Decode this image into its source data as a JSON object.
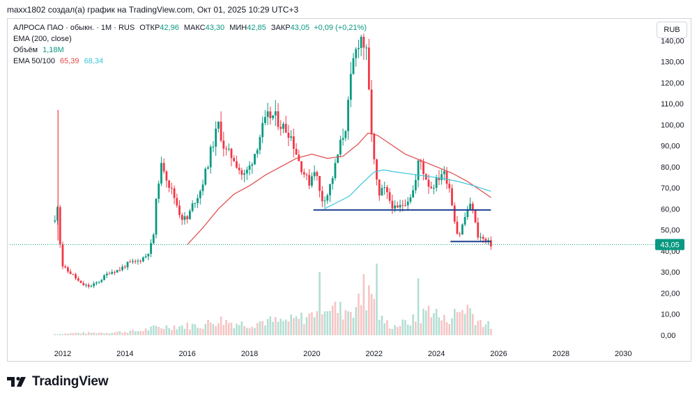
{
  "header": {
    "attribution": "maxx1802 создал(а) график на TradingView.com, Окт 01, 2025 10:29 UTC+3"
  },
  "legend": {
    "symbol": "АЛРОСА ПАО · обыкн. · 1М · RUS",
    "open_label": "ОТКР",
    "open_value": "42,96",
    "high_label": "МАКС",
    "high_value": "43,30",
    "low_label": "МИН",
    "low_value": "42,85",
    "close_label": "ЗАКР",
    "close_value": "43,05",
    "change_value": "+0,09 (+0,21%)",
    "ema200_label": "EMA (200, close)",
    "volume_label": "Объём",
    "volume_value": "1,18M",
    "ema_50_100_label": "EMA 50/100",
    "ema50_value": "65,39",
    "ema100_value": "68,34"
  },
  "currency_button": "RUB",
  "price_badge": "43,05",
  "brand": {
    "name": "TradingView"
  },
  "colors": {
    "up": "#089981",
    "down": "#f23645",
    "ema50": "#e04848",
    "ema100": "#3ac6dc",
    "level": "#1e3f8f",
    "volume_up": "#b2dfd4",
    "volume_down": "#f7c4c4",
    "price_line": "#089981"
  },
  "chart_data": {
    "type": "candlestick",
    "title": "АЛРОСА ПАО · обыкн. · 1М · RUS",
    "xlabel": "",
    "ylabel": "",
    "x_ticks": [
      "2012",
      "2014",
      "2016",
      "2018",
      "2020",
      "2022",
      "2024",
      "2026",
      "2028",
      "2030"
    ],
    "y_ticks": [
      "0,00",
      "10,00",
      "20,00",
      "30,00",
      "40,00",
      "50,00",
      "60,00",
      "70,00",
      "80,00",
      "90,00",
      "100,00",
      "110,00",
      "120,00",
      "130,00",
      "140,00"
    ],
    "ylim": [
      -4,
      150
    ],
    "xlim": [
      2010.3,
      2030.8
    ],
    "last_price": 43.05,
    "horizontal_levels": [
      {
        "price": 59.5,
        "from": 2020.05,
        "to": 2025.75
      },
      {
        "price": 44.5,
        "from": 2024.45,
        "to": 2025.75
      }
    ],
    "price_path": [
      [
        2011.75,
        54
      ],
      [
        2011.85,
        64
      ],
      [
        2011.95,
        34
      ],
      [
        2012.1,
        31
      ],
      [
        2012.3,
        29
      ],
      [
        2012.6,
        24
      ],
      [
        2012.9,
        23
      ],
      [
        2013.2,
        26
      ],
      [
        2013.5,
        30
      ],
      [
        2013.8,
        31
      ],
      [
        2014.1,
        34
      ],
      [
        2014.4,
        35
      ],
      [
        2014.7,
        38
      ],
      [
        2014.9,
        45
      ],
      [
        2015.05,
        72
      ],
      [
        2015.2,
        82
      ],
      [
        2015.4,
        72
      ],
      [
        2015.6,
        65
      ],
      [
        2015.8,
        56
      ],
      [
        2016.0,
        55
      ],
      [
        2016.2,
        63
      ],
      [
        2016.4,
        68
      ],
      [
        2016.6,
        78
      ],
      [
        2016.8,
        90
      ],
      [
        2017.0,
        100
      ],
      [
        2017.2,
        88
      ],
      [
        2017.5,
        84
      ],
      [
        2017.8,
        75
      ],
      [
        2018.0,
        80
      ],
      [
        2018.2,
        88
      ],
      [
        2018.4,
        98
      ],
      [
        2018.6,
        104
      ],
      [
        2018.8,
        104
      ],
      [
        2019.0,
        100
      ],
      [
        2019.3,
        96
      ],
      [
        2019.6,
        82
      ],
      [
        2019.9,
        72
      ],
      [
        2020.1,
        80
      ],
      [
        2020.3,
        64
      ],
      [
        2020.5,
        67
      ],
      [
        2020.7,
        77
      ],
      [
        2020.9,
        90
      ],
      [
        2021.1,
        100
      ],
      [
        2021.3,
        128
      ],
      [
        2021.5,
        140
      ],
      [
        2021.6,
        142
      ],
      [
        2021.75,
        133
      ],
      [
        2021.9,
        100
      ],
      [
        2022.0,
        82
      ],
      [
        2022.15,
        65
      ],
      [
        2022.3,
        70
      ],
      [
        2022.5,
        64
      ],
      [
        2022.7,
        59
      ],
      [
        2022.9,
        62
      ],
      [
        2023.1,
        65
      ],
      [
        2023.3,
        70
      ],
      [
        2023.45,
        85
      ],
      [
        2023.6,
        77
      ],
      [
        2023.8,
        70
      ],
      [
        2024.0,
        73
      ],
      [
        2024.2,
        78
      ],
      [
        2024.4,
        72
      ],
      [
        2024.55,
        58
      ],
      [
        2024.7,
        46
      ],
      [
        2024.85,
        53
      ],
      [
        2025.0,
        60
      ],
      [
        2025.15,
        62
      ],
      [
        2025.3,
        48
      ],
      [
        2025.45,
        46
      ],
      [
        2025.6,
        44.5
      ],
      [
        2025.75,
        43.05
      ]
    ],
    "ema50_path": [
      [
        2016.0,
        43
      ],
      [
        2016.5,
        51
      ],
      [
        2017.0,
        60
      ],
      [
        2017.5,
        67
      ],
      [
        2018.0,
        71
      ],
      [
        2018.5,
        76
      ],
      [
        2019.0,
        80
      ],
      [
        2019.5,
        84
      ],
      [
        2020.0,
        86
      ],
      [
        2020.5,
        84
      ],
      [
        2021.0,
        85
      ],
      [
        2021.5,
        91
      ],
      [
        2021.8,
        96
      ],
      [
        2022.1,
        95
      ],
      [
        2022.5,
        91
      ],
      [
        2023.0,
        86
      ],
      [
        2023.5,
        83
      ],
      [
        2024.0,
        80
      ],
      [
        2024.5,
        77
      ],
      [
        2025.0,
        73
      ],
      [
        2025.4,
        69
      ],
      [
        2025.75,
        65.39
      ]
    ],
    "ema100_path": [
      [
        2020.4,
        60
      ],
      [
        2020.8,
        63
      ],
      [
        2021.2,
        66
      ],
      [
        2021.6,
        72
      ],
      [
        2022.0,
        77.5
      ],
      [
        2022.3,
        78.5
      ],
      [
        2022.7,
        77.5
      ],
      [
        2023.2,
        76.5
      ],
      [
        2023.7,
        75.5
      ],
      [
        2024.2,
        74.5
      ],
      [
        2024.7,
        73
      ],
      [
        2025.2,
        71
      ],
      [
        2025.75,
        68.34
      ]
    ],
    "volume_path": [
      [
        2011.75,
        0.5
      ],
      [
        2012.5,
        1
      ],
      [
        2013.5,
        1.2
      ],
      [
        2014.5,
        2
      ],
      [
        2015.0,
        3.5
      ],
      [
        2015.5,
        4
      ],
      [
        2016.5,
        4.5
      ],
      [
        2017.0,
        7
      ],
      [
        2017.5,
        5.5
      ],
      [
        2018.0,
        5
      ],
      [
        2018.5,
        6.5
      ],
      [
        2019.0,
        6
      ],
      [
        2019.5,
        7
      ],
      [
        2020.0,
        9
      ],
      [
        2020.3,
        16
      ],
      [
        2020.7,
        12
      ],
      [
        2021.0,
        11
      ],
      [
        2021.4,
        13
      ],
      [
        2021.7,
        16
      ],
      [
        2022.0,
        19
      ],
      [
        2022.2,
        7
      ],
      [
        2022.6,
        4
      ],
      [
        2023.0,
        5.5
      ],
      [
        2023.5,
        8
      ],
      [
        2023.8,
        13
      ],
      [
        2024.2,
        6.5
      ],
      [
        2024.6,
        9.5
      ],
      [
        2025.0,
        13
      ],
      [
        2025.3,
        7
      ],
      [
        2025.75,
        4
      ]
    ],
    "volume_spikes": [
      [
        2022.1,
        34
      ],
      [
        2023.45,
        27
      ],
      [
        2021.65,
        29
      ],
      [
        2020.25,
        30
      ]
    ]
  }
}
